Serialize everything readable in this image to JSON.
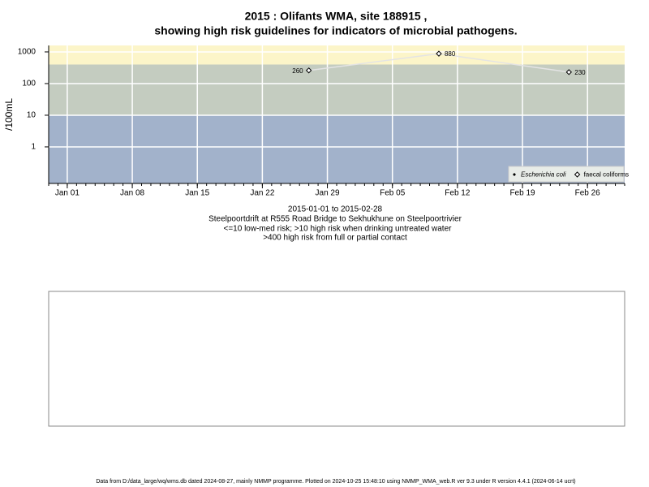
{
  "chart_data": {
    "type": "line",
    "title": [
      "2015 : Olifants WMA, site 188915 ,",
      "showing high risk guidelines for indicators of microbial pathogens."
    ],
    "y_label": "/100mL",
    "notes": [
      "2015-01-01 to 2015-02-28",
      "Steelpoortdrift at R555 Road Bridge to Sekhukhune on Steelpoortrivier",
      "<=10 low-med risk; >10 high risk when drinking untreated water",
      ">400 high risk from full or partial contact"
    ],
    "footer": "Data from D:/data_large/wq/wms.db dated 2024-08-27, mainly NMMP programme. Plotted on 2024-10-25 15:48:10 using NMMP_WMA_web.R ver 9.3 under R version 4.4.1 (2024-06-14 ucrt)",
    "log_y": true,
    "ylim": [
      0.07,
      1600
    ],
    "yticks": [
      1,
      10,
      100,
      1000
    ],
    "xlim": [
      "2014-12-30",
      "2015-03-02"
    ],
    "xticks": [
      {
        "value": "2015-01-01",
        "label": "Jan 01"
      },
      {
        "value": "2015-01-08",
        "label": "Jan 08"
      },
      {
        "value": "2015-01-15",
        "label": "Jan 15"
      },
      {
        "value": "2015-01-22",
        "label": "Jan 22"
      },
      {
        "value": "2015-01-29",
        "label": "Jan 29"
      },
      {
        "value": "2015-02-05",
        "label": "Feb 05"
      },
      {
        "value": "2015-02-12",
        "label": "Feb 12"
      },
      {
        "value": "2015-02-19",
        "label": "Feb 19"
      },
      {
        "value": "2015-02-26",
        "label": "Feb 26"
      }
    ],
    "grid": true,
    "thresholds": [
      10,
      400
    ],
    "band_colors": [
      "#a2b2cb",
      "#c4ccc0",
      "#fcf5c9"
    ],
    "x": [
      "2015-01-27",
      "2015-02-10",
      "2015-02-24"
    ],
    "series": [
      {
        "name": "Escherichia coli",
        "color": "#000000",
        "marker": "filled",
        "values": [
          null,
          null,
          null
        ]
      },
      {
        "name": "faecal coliforms",
        "color": "#000000",
        "line_color": "#e4e4e4",
        "marker": "open",
        "values": [
          260,
          880,
          230
        ]
      }
    ],
    "legend": "bottom-right"
  }
}
